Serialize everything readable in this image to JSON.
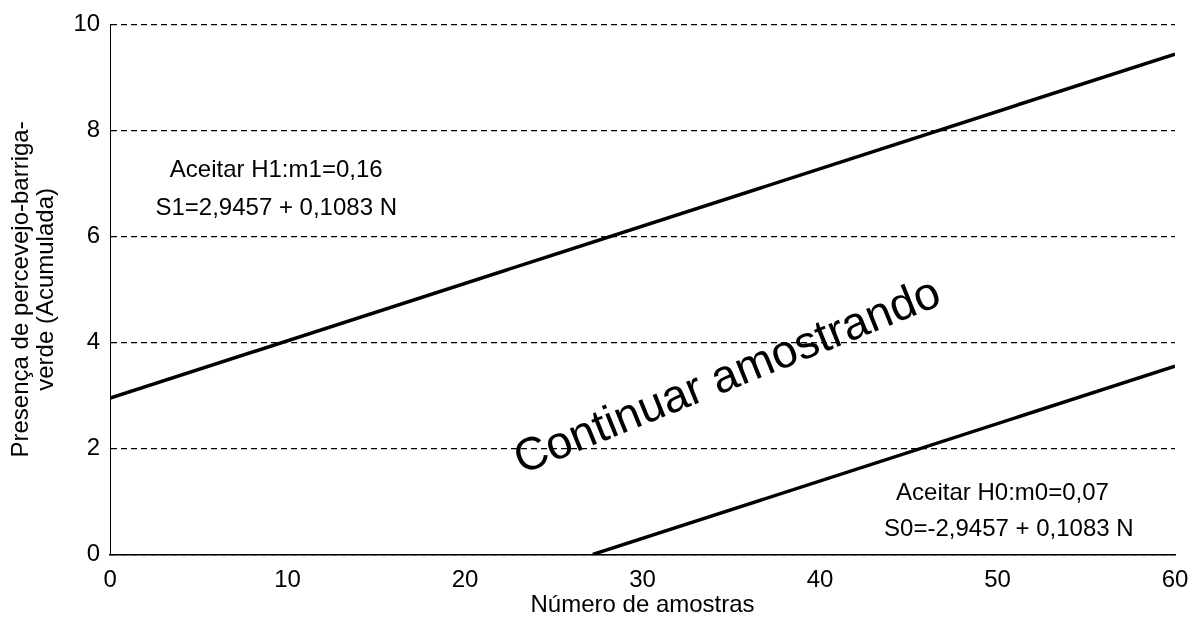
{
  "chart_data": {
    "type": "line",
    "xlabel": "Número de amostras",
    "ylabel": "Presença de percevejo-barriga-verde (Acumulada)",
    "series": [
      {
        "color": "#000000",
        "x": [
          0,
          60
        ],
        "values": [
          2.95,
          9.44
        ]
      },
      {
        "color": "#000000",
        "x": [
          27.2,
          60
        ],
        "values": [
          0,
          3.55
        ]
      }
    ],
    "xlim": [
      0,
      60
    ],
    "xticks": [
      0,
      10,
      20,
      30,
      40,
      50,
      60
    ],
    "ylim": [
      0,
      10
    ],
    "yticks": [
      0,
      2,
      4,
      6,
      8,
      10
    ],
    "grid": "y",
    "legend": false,
    "marker": "none",
    "line_style": "solid",
    "annotations": [
      "Aceitar H1:m1=0,16",
      "S1=2,9457 + 0,1083 N",
      "Continuar amostrando",
      "Aceitar H0:m0=0,07",
      "S0=-2,9457 + 0,1083 N"
    ]
  }
}
